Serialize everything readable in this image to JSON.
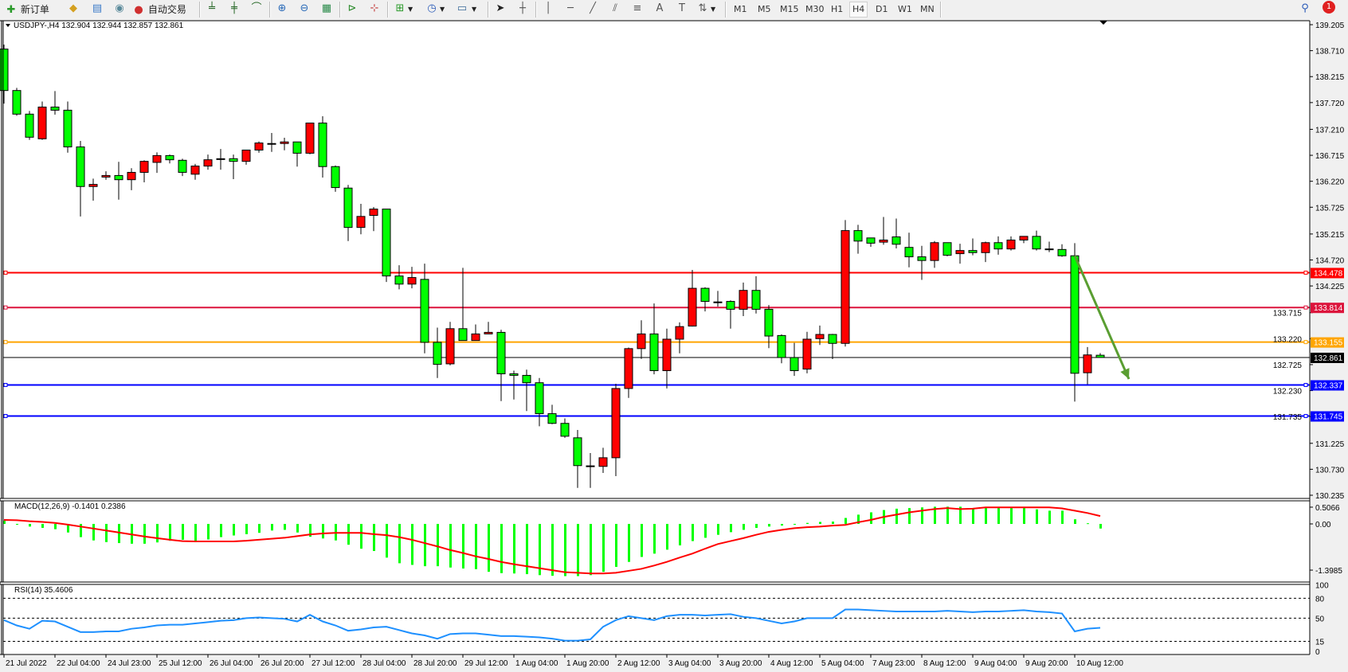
{
  "toolbar": {
    "new_order": "新订单",
    "auto_trading": "自动交易",
    "timeframes": [
      "M1",
      "M5",
      "M15",
      "M30",
      "H1",
      "H4",
      "D1",
      "W1",
      "MN"
    ],
    "active_timeframe": "H4",
    "notification_count": "1",
    "icons": [
      "new-order-icon",
      "gold-bars-icon",
      "market-watch-icon",
      "signal-icon",
      "auto-trading-icon",
      "bar-chart-icon",
      "candlestick-icon",
      "line-chart-icon",
      "zoom-in-icon",
      "zoom-out-icon",
      "tile-windows-icon",
      "chart-shift-icon",
      "autoscroll-icon",
      "indicators-icon",
      "periods-icon",
      "templates-icon",
      "cursor-icon",
      "crosshair-icon",
      "vertical-line-icon",
      "horizontal-line-icon",
      "trendline-icon",
      "equidistant-channel-icon",
      "fibonacci-icon",
      "text-icon",
      "text-label-icon",
      "arrows-icon",
      "search-icon",
      "notification-icon"
    ]
  },
  "chart": {
    "header": "USDJPY-,H4  132.904 132.944 132.857 132.861",
    "bid_label": "132.861"
  },
  "chart_data": {
    "type": "candlestick",
    "symbol": "USDJPY-",
    "timeframe": "H4",
    "ohlc_header": {
      "open": 132.904,
      "high": 132.944,
      "low": 132.857,
      "close": 132.861
    },
    "colors": {
      "up": "#ff0000",
      "down": "#00ff00",
      "outline": "#000000",
      "background": "#ffffff"
    },
    "ylim": [
      130.235,
      139.205
    ],
    "price_ticks": [
      "139.205",
      "138.710",
      "138.215",
      "137.720",
      "137.210",
      "136.715",
      "136.220",
      "135.725",
      "135.215",
      "134.720",
      "134.225",
      "133.715",
      "133.220",
      "132.725",
      "132.230",
      "131.735",
      "131.225",
      "130.730",
      "130.235"
    ],
    "time_labels": [
      "21 Jul 2022",
      "22 Jul 04:00",
      "24 Jul 23:00",
      "25 Jul 12:00",
      "26 Jul 04:00",
      "26 Jul 20:00",
      "27 Jul 12:00",
      "28 Jul 04:00",
      "28 Jul 20:00",
      "29 Jul 12:00",
      "1 Aug 04:00",
      "1 Aug 20:00",
      "2 Aug 12:00",
      "3 Aug 04:00",
      "3 Aug 20:00",
      "4 Aug 12:00",
      "5 Aug 04:00",
      "7 Aug 23:00",
      "8 Aug 12:00",
      "9 Aug 04:00",
      "9 Aug 20:00",
      "10 Aug 12:00"
    ],
    "time_label_every_n_bars": 4,
    "levels": [
      {
        "price": "134.478",
        "color": "#ff0000"
      },
      {
        "price": "133.814",
        "color": "#dc143c"
      },
      {
        "price": "133.155",
        "color": "#ffa500"
      },
      {
        "price": "132.337",
        "color": "#0000ff"
      },
      {
        "price": "131.745",
        "color": "#0000ff"
      }
    ],
    "bid": {
      "price": "132.861",
      "color": "#000000"
    },
    "trend_arrow": {
      "color": "#5a9e32",
      "from": {
        "bar": 85,
        "price": 134.8
      },
      "to": {
        "bar": 89,
        "price": 132.45
      }
    },
    "candles": [
      [
        138.74,
        138.825,
        137.7,
        137.95
      ],
      [
        137.95,
        138.0,
        137.47,
        137.5
      ],
      [
        137.5,
        137.56,
        137.01,
        137.06
      ],
      [
        137.03,
        137.74,
        137.01,
        137.635
      ],
      [
        137.635,
        137.94,
        137.49,
        137.575
      ],
      [
        137.575,
        137.74,
        136.765,
        136.875
      ],
      [
        136.875,
        136.99,
        135.55,
        136.12
      ],
      [
        136.12,
        136.27,
        135.85,
        136.16
      ],
      [
        136.3,
        136.41,
        136.25,
        136.33
      ],
      [
        136.33,
        136.59,
        135.87,
        136.25
      ],
      [
        136.25,
        136.47,
        136.05,
        136.39
      ],
      [
        136.39,
        136.62,
        136.2,
        136.6
      ],
      [
        136.58,
        136.77,
        136.38,
        136.71
      ],
      [
        136.71,
        136.73,
        136.56,
        136.63
      ],
      [
        136.62,
        136.65,
        136.32,
        136.39
      ],
      [
        136.355,
        136.55,
        136.25,
        136.51
      ],
      [
        136.51,
        136.73,
        136.44,
        136.63
      ],
      [
        136.65,
        136.835,
        136.44,
        136.65
      ],
      [
        136.65,
        136.73,
        136.26,
        136.6
      ],
      [
        136.6,
        136.815,
        136.535,
        136.815
      ],
      [
        136.815,
        136.98,
        136.765,
        136.95
      ],
      [
        136.94,
        137.14,
        136.78,
        136.94
      ],
      [
        136.94,
        137.05,
        136.81,
        136.97
      ],
      [
        136.97,
        136.97,
        136.5,
        136.755
      ],
      [
        136.755,
        137.33,
        136.735,
        137.33
      ],
      [
        137.33,
        137.46,
        136.29,
        136.5
      ],
      [
        136.5,
        136.52,
        136.02,
        136.1
      ],
      [
        136.09,
        136.15,
        135.08,
        135.34
      ],
      [
        135.34,
        135.79,
        135.21,
        135.55
      ],
      [
        135.57,
        135.73,
        135.27,
        135.69
      ],
      [
        135.69,
        135.69,
        134.3,
        134.415
      ],
      [
        134.415,
        134.62,
        134.16,
        134.26
      ],
      [
        134.26,
        134.59,
        134.18,
        134.385
      ],
      [
        134.35,
        134.65,
        132.94,
        133.15
      ],
      [
        133.15,
        133.43,
        132.47,
        132.73
      ],
      [
        132.74,
        133.54,
        132.71,
        133.41
      ],
      [
        133.41,
        134.57,
        133.185,
        133.185
      ],
      [
        133.185,
        133.49,
        133.185,
        133.31
      ],
      [
        133.31,
        133.54,
        133.31,
        133.34
      ],
      [
        133.34,
        133.39,
        132.03,
        132.55
      ],
      [
        132.55,
        132.61,
        132.06,
        132.52
      ],
      [
        132.52,
        132.63,
        131.84,
        132.38
      ],
      [
        132.38,
        132.47,
        131.55,
        131.79
      ],
      [
        131.79,
        131.96,
        131.59,
        131.605
      ],
      [
        131.605,
        131.7,
        131.33,
        131.36
      ],
      [
        131.33,
        131.48,
        130.375,
        130.8
      ],
      [
        130.795,
        131.04,
        130.375,
        130.795
      ],
      [
        130.785,
        131.14,
        130.66,
        130.95
      ],
      [
        130.95,
        132.36,
        130.6,
        132.27
      ],
      [
        132.27,
        133.05,
        132.09,
        133.03
      ],
      [
        133.03,
        133.57,
        132.835,
        133.31
      ],
      [
        133.31,
        133.89,
        132.54,
        132.61
      ],
      [
        132.61,
        133.41,
        132.27,
        133.21
      ],
      [
        133.21,
        133.53,
        132.94,
        133.45
      ],
      [
        133.46,
        134.53,
        133.45,
        134.18
      ],
      [
        134.18,
        134.2,
        133.74,
        133.93
      ],
      [
        133.92,
        134.13,
        133.83,
        133.92
      ],
      [
        133.93,
        133.95,
        133.41,
        133.78
      ],
      [
        133.78,
        134.29,
        133.65,
        134.14
      ],
      [
        134.14,
        134.41,
        133.7,
        133.78
      ],
      [
        133.78,
        133.86,
        133.04,
        133.27
      ],
      [
        133.28,
        133.3,
        132.75,
        132.86
      ],
      [
        132.86,
        133.14,
        132.51,
        132.61
      ],
      [
        132.64,
        133.35,
        132.56,
        133.21
      ],
      [
        133.22,
        133.47,
        133.1,
        133.3
      ],
      [
        133.3,
        133.31,
        132.83,
        133.13
      ],
      [
        133.13,
        135.48,
        133.07,
        135.28
      ],
      [
        135.28,
        135.39,
        134.84,
        135.08
      ],
      [
        135.14,
        135.14,
        134.97,
        135.04
      ],
      [
        135.06,
        135.54,
        135.01,
        135.1
      ],
      [
        135.16,
        135.51,
        134.94,
        135.02
      ],
      [
        134.96,
        135.24,
        134.58,
        134.78
      ],
      [
        134.78,
        134.99,
        134.34,
        134.71
      ],
      [
        134.71,
        135.08,
        134.57,
        135.05
      ],
      [
        135.05,
        135.05,
        134.79,
        134.81
      ],
      [
        134.84,
        135.03,
        134.65,
        134.9
      ],
      [
        134.9,
        135.13,
        134.81,
        134.86
      ],
      [
        134.86,
        135.07,
        134.68,
        135.05
      ],
      [
        135.05,
        135.17,
        134.82,
        134.93
      ],
      [
        134.93,
        135.17,
        134.9,
        135.1
      ],
      [
        135.1,
        135.17,
        135.04,
        135.17
      ],
      [
        135.17,
        135.28,
        134.9,
        134.93
      ],
      [
        134.93,
        135.07,
        134.87,
        134.93
      ],
      [
        134.92,
        135.02,
        134.78,
        134.8
      ],
      [
        134.8,
        135.04,
        132.02,
        132.56
      ],
      [
        132.57,
        133.06,
        132.35,
        132.91
      ],
      [
        132.904,
        132.944,
        132.857,
        132.861
      ]
    ],
    "macd": {
      "label": "MACD(12,26,9) -0.1401 0.2386",
      "ticks": [
        "0.5066",
        "0.00",
        "-1.3985"
      ],
      "histogram_color": "#00ff00",
      "signal_color": "#ff0000",
      "histogram": [
        0.1,
        -0.02,
        -0.08,
        -0.12,
        -0.16,
        -0.26,
        -0.4,
        -0.5,
        -0.55,
        -0.58,
        -0.6,
        -0.6,
        -0.56,
        -0.51,
        -0.48,
        -0.51,
        -0.47,
        -0.4,
        -0.35,
        -0.31,
        -0.27,
        -0.2,
        -0.18,
        -0.26,
        -0.39,
        -0.44,
        -0.5,
        -0.63,
        -0.75,
        -0.82,
        -1.02,
        -1.19,
        -1.24,
        -1.28,
        -1.28,
        -1.32,
        -1.35,
        -1.37,
        -1.45,
        -1.49,
        -1.5,
        -1.52,
        -1.55,
        -1.57,
        -1.58,
        -1.58,
        -1.55,
        -1.45,
        -1.3,
        -1.15,
        -1.0,
        -0.9,
        -0.78,
        -0.65,
        -0.52,
        -0.42,
        -0.33,
        -0.25,
        -0.18,
        -0.12,
        -0.08,
        -0.05,
        -0.02,
        0.03,
        0.06,
        0.07,
        0.18,
        0.28,
        0.35,
        0.42,
        0.46,
        0.48,
        0.5,
        0.52,
        0.52,
        0.52,
        0.48,
        0.48,
        0.48,
        0.48,
        0.48,
        0.44,
        0.4,
        0.4,
        0.14,
        0.02,
        -0.1401
      ],
      "signal": [
        0.12,
        0.11,
        0.08,
        0.06,
        0.03,
        -0.02,
        -0.08,
        -0.14,
        -0.2,
        -0.26,
        -0.32,
        -0.38,
        -0.43,
        -0.48,
        -0.52,
        -0.53,
        -0.53,
        -0.53,
        -0.53,
        -0.51,
        -0.48,
        -0.45,
        -0.42,
        -0.37,
        -0.32,
        -0.29,
        -0.27,
        -0.27,
        -0.27,
        -0.31,
        -0.34,
        -0.4,
        -0.48,
        -0.58,
        -0.68,
        -0.79,
        -0.88,
        -0.98,
        -1.06,
        -1.15,
        -1.22,
        -1.28,
        -1.34,
        -1.4,
        -1.46,
        -1.48,
        -1.5,
        -1.5,
        -1.48,
        -1.42,
        -1.36,
        -1.26,
        -1.15,
        -1.02,
        -0.9,
        -0.75,
        -0.61,
        -0.52,
        -0.43,
        -0.33,
        -0.24,
        -0.18,
        -0.13,
        -0.1,
        -0.08,
        -0.05,
        -0.03,
        0.05,
        0.12,
        0.21,
        0.28,
        0.35,
        0.4,
        0.45,
        0.48,
        0.45,
        0.46,
        0.5,
        0.5,
        0.5,
        0.5,
        0.5,
        0.5,
        0.47,
        0.4,
        0.33,
        0.2386
      ]
    },
    "rsi": {
      "label": "RSI(14) 35.4606",
      "ticks": [
        "100",
        "80",
        "50",
        "15",
        "0"
      ],
      "levels": [
        80,
        50,
        15
      ],
      "line_color": "#1e90ff",
      "values": [
        47,
        39,
        34,
        46,
        45,
        37,
        29,
        29,
        30,
        30,
        34,
        36,
        39,
        40,
        40,
        42,
        44,
        46,
        47,
        50,
        51,
        50,
        49,
        45,
        55,
        45,
        39,
        31,
        33,
        36,
        37,
        32,
        27,
        24,
        19,
        26,
        27,
        27,
        25,
        23,
        23,
        22,
        21,
        19,
        16,
        16,
        18,
        37,
        47,
        53,
        50,
        47,
        53,
        55,
        55,
        54,
        55,
        56,
        52,
        50,
        46,
        42,
        45,
        50,
        50,
        50,
        63,
        63,
        62,
        61,
        60,
        60,
        60,
        60,
        61,
        60,
        59,
        60,
        60,
        61,
        62,
        60,
        59,
        57,
        30,
        34,
        35.4606
      ]
    }
  }
}
